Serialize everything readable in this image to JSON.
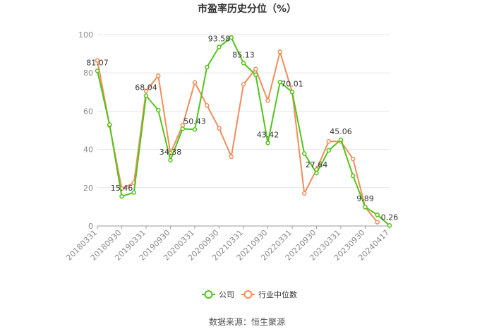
{
  "chart_data": {
    "type": "line",
    "title": "市盈率历史分位（%）",
    "source": "数据来源：恒生聚源",
    "ylim": [
      0,
      100
    ],
    "yticks": [
      0,
      20,
      40,
      60,
      80,
      100
    ],
    "grid": true,
    "legend_position": "bottom",
    "x_labels": [
      "20180331",
      "20180930",
      "20190331",
      "20190930",
      "20200331",
      "20200930",
      "20210331",
      "20210930",
      "20220331",
      "20220930",
      "20230331",
      "20230930",
      "20240417"
    ],
    "series": [
      {
        "name": "公司",
        "color": "#52c41a",
        "values": [
          81.07,
          53,
          15.46,
          17.5,
          68.04,
          60.5,
          34.38,
          50.8,
          50.43,
          83,
          93.58,
          98.5,
          85.13,
          79,
          43.42,
          75.2,
          70.01,
          37.8,
          27.64,
          39.5,
          45.06,
          26.2,
          9.89,
          5.8,
          0.26
        ],
        "labels": {
          "0": "81.07",
          "2": "15.46",
          "4": "68.04",
          "6": "34.38",
          "8": "50.43",
          "10": "93.58",
          "12": "85.13",
          "14": "43.42",
          "16": "70.01",
          "18": "27.64",
          "20": "45.06",
          "22": "9.89",
          "24": "0.26"
        }
      },
      {
        "name": "行业中位数",
        "color": "#f28c5a",
        "values": [
          86.5,
          52.5,
          19.5,
          22.5,
          70.5,
          78.5,
          38,
          52.5,
          75,
          63,
          51,
          36.2,
          74,
          82,
          65.5,
          91,
          70,
          17,
          29.5,
          44.2,
          44.2,
          35,
          9.8,
          2,
          null
        ]
      }
    ]
  }
}
